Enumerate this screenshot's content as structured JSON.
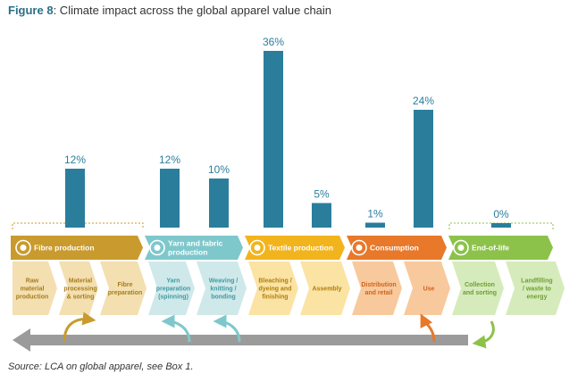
{
  "figure": {
    "label": "Figure 8",
    "caption": ": Climate impact across the global apparel value chain",
    "source": "Source: LCA on global apparel, see Box 1."
  },
  "colors": {
    "bar": "#2a7e9c",
    "fibre": "#c99a2e",
    "fibre_light": "#f3dfb0",
    "yarn": "#7ec8cc",
    "yarn_light": "#cfe9ea",
    "textile": "#f2b41d",
    "textile_light": "#fbe3a4",
    "consumption": "#e8782a",
    "consumption_light": "#f8c99c",
    "eol": "#8cc24a",
    "eol_light": "#d6ebbb",
    "arrow": "#9b9b9b"
  },
  "stages": [
    {
      "name": "Fibre production",
      "icon": "recycle-fibre-icon"
    },
    {
      "name": "Yarn and fabric production",
      "icon": "yarn-ball-icon"
    },
    {
      "name": "Textile production",
      "icon": "tshirt-icon"
    },
    {
      "name": "Consumption",
      "icon": "shopping-cart-icon"
    },
    {
      "name": "End-of-life",
      "icon": "recycle-icon"
    }
  ],
  "chart_data": {
    "type": "bar",
    "categories": [
      "Fibre production",
      "Yarn preparation (spinning)",
      "Weaving / knitting / bonding",
      "Bleaching / dyeing and finishing",
      "Assembly",
      "Distribution and retail",
      "Use",
      "End-of-life"
    ],
    "values": [
      12,
      12,
      10,
      36,
      5,
      1,
      24,
      0
    ],
    "value_labels": [
      "12%",
      "12%",
      "10%",
      "36%",
      "5%",
      "1%",
      "24%",
      "0%"
    ],
    "unit": "%",
    "ylim": [
      0,
      36
    ],
    "grid": false,
    "legend": "none"
  },
  "steps": [
    {
      "label": "Raw material production",
      "stage": "fibre"
    },
    {
      "label": "Material processing & sorting",
      "stage": "fibre"
    },
    {
      "label": "Fibre preparation",
      "stage": "fibre"
    },
    {
      "label": "Yarn preparation (spinning)",
      "stage": "yarn"
    },
    {
      "label": "Weaving / knitting / bonding",
      "stage": "yarn"
    },
    {
      "label": "Bleaching / dyeing and finishing",
      "stage": "textile"
    },
    {
      "label": "Assembly",
      "stage": "textile"
    },
    {
      "label": "Distribution and retail",
      "stage": "consumption"
    },
    {
      "label": "Use",
      "stage": "consumption"
    },
    {
      "label": "Collection and sorting",
      "stage": "eol"
    },
    {
      "label": "Landfilling / waste to energy",
      "stage": "eol"
    }
  ]
}
